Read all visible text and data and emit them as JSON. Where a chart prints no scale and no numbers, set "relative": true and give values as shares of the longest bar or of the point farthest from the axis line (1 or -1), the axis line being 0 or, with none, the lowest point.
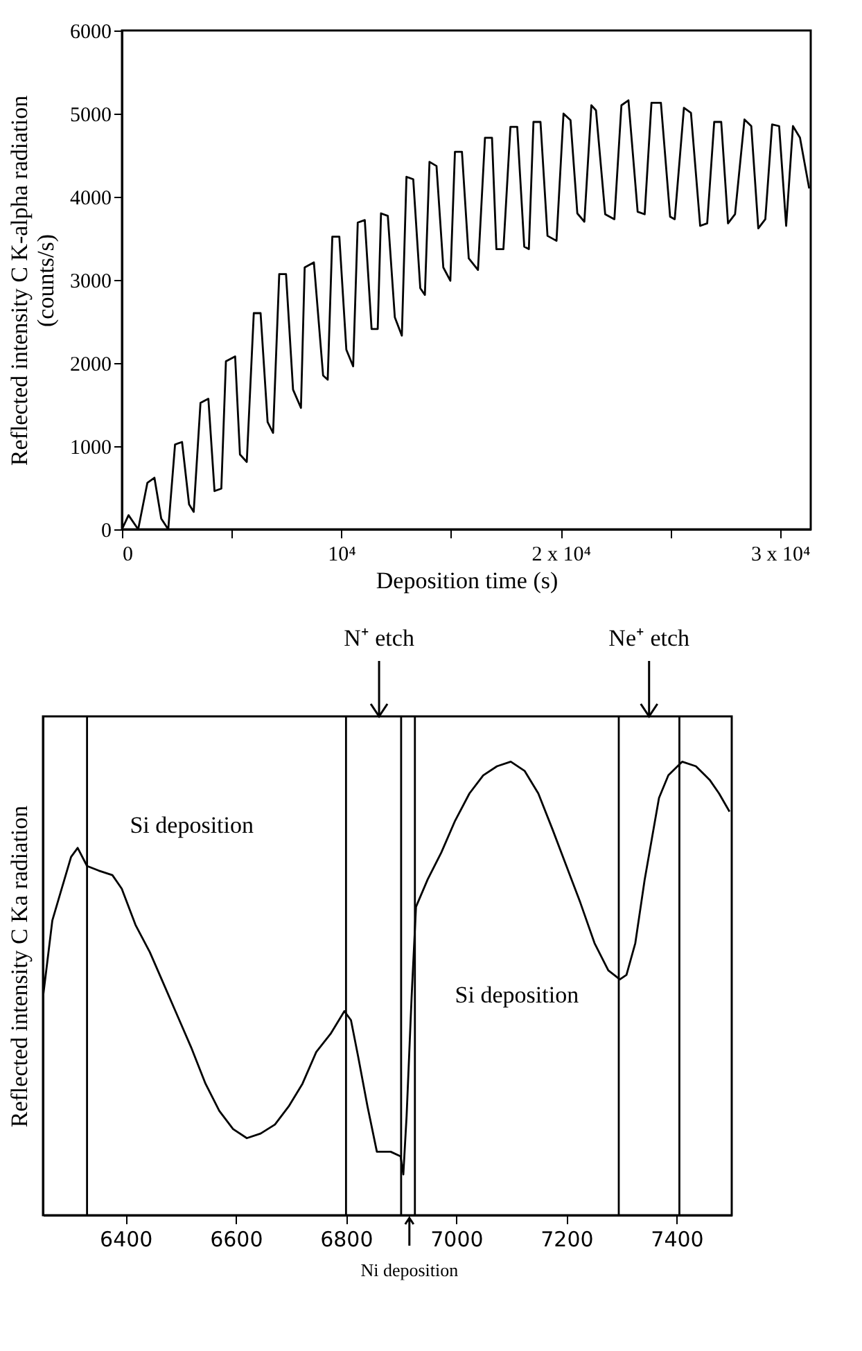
{
  "chart_data": [
    {
      "type": "line",
      "xlabel": "Deposition time (s)",
      "ylabel": "Reflected intensity C K-alpha radiation\n(counts/s)",
      "xlim": [
        0,
        31400
      ],
      "ylim": [
        0,
        6000
      ],
      "xticks": [
        0,
        {
          "value": 5000,
          "label": null
        },
        {
          "value": 10000,
          "label": "10⁴"
        },
        {
          "value": 15000,
          "label": null
        },
        {
          "value": 20000,
          "label": "2 x 10⁴"
        },
        {
          "value": 25000,
          "label": null
        },
        {
          "value": 30000,
          "label": "3 x 10⁴"
        }
      ],
      "yticks": [
        0,
        1000,
        2000,
        3000,
        4000,
        5000,
        6000
      ],
      "x": [
        0,
        300,
        740,
        1160,
        1480,
        1790,
        2110,
        2420,
        2740,
        3060,
        3270,
        3580,
        3940,
        4220,
        4530,
        4740,
        5160,
        5380,
        5690,
        6010,
        6320,
        6640,
        6890,
        7170,
        7480,
        7800,
        8160,
        8330,
        8750,
        9170,
        9380,
        9590,
        9910,
        10230,
        10540,
        10750,
        11070,
        11380,
        11660,
        11810,
        12120,
        12440,
        12760,
        12970,
        13280,
        13600,
        13810,
        14020,
        14340,
        14650,
        14970,
        15180,
        15500,
        15810,
        16230,
        16550,
        16870,
        17070,
        17390,
        17710,
        18020,
        18340,
        18550,
        18760,
        19080,
        19400,
        19810,
        20130,
        20450,
        20760,
        21080,
        21400,
        21610,
        22030,
        22450,
        22770,
        23090,
        23510,
        23830,
        24140,
        24570,
        24990,
        25200,
        25620,
        25940,
        26360,
        26680,
        27000,
        27320,
        27630,
        27950,
        28380,
        28690,
        29010,
        29330,
        29640,
        29960,
        30280,
        30590,
        30910,
        31330
      ],
      "series": [
        {
          "color": "#000000",
          "values": [
            0,
            170,
            0,
            560,
            620,
            130,
            0,
            1020,
            1050,
            300,
            210,
            1520,
            1570,
            460,
            490,
            2020,
            2080,
            900,
            810,
            2600,
            2600,
            1290,
            1160,
            3070,
            3070,
            1680,
            1460,
            3150,
            3210,
            1850,
            1800,
            3520,
            3520,
            2160,
            1960,
            3690,
            3720,
            2410,
            2410,
            3800,
            3770,
            2550,
            2330,
            4240,
            4210,
            2900,
            2820,
            4420,
            4370,
            3150,
            2990,
            4540,
            4540,
            3260,
            3120,
            4710,
            4710,
            3370,
            3370,
            4840,
            4840,
            3400,
            3370,
            4900,
            4900,
            3530,
            3470,
            5000,
            4920,
            3800,
            3700,
            5100,
            5040,
            3790,
            3730,
            5100,
            5160,
            3820,
            3790,
            5130,
            5130,
            3760,
            3730,
            5070,
            5010,
            3650,
            3680,
            4900,
            4900,
            3680,
            3790,
            4930,
            4850,
            3620,
            3730,
            4870,
            4850,
            3650,
            4850,
            4710,
            4100
          ]
        }
      ]
    },
    {
      "type": "line",
      "relative": true,
      "ylabel": "Reflected intensity C Ka radiation",
      "xlim": [
        6250,
        7500
      ],
      "xticks": [
        6400,
        6600,
        6800,
        7000,
        7200,
        7400
      ],
      "x": [
        6250,
        6267,
        6284,
        6301,
        6313,
        6330,
        6351,
        6376,
        6393,
        6418,
        6444,
        6469,
        6494,
        6519,
        6545,
        6570,
        6595,
        6620,
        6645,
        6671,
        6696,
        6721,
        6746,
        6772,
        6797,
        6809,
        6822,
        6839,
        6856,
        6881,
        6899,
        6904,
        6910,
        6919,
        6927,
        6948,
        6973,
        6998,
        7024,
        7049,
        7074,
        7099,
        7124,
        7149,
        7175,
        7200,
        7225,
        7251,
        7276,
        7297,
        7309,
        7325,
        7342,
        7355,
        7368,
        7385,
        7410,
        7435,
        7460,
        7477,
        7496
      ],
      "series": [
        {
          "color": "#000000",
          "values": [
            0.48,
            0.65,
            0.72,
            0.79,
            0.81,
            0.77,
            0.76,
            0.75,
            0.72,
            0.64,
            0.58,
            0.51,
            0.44,
            0.37,
            0.29,
            0.23,
            0.19,
            0.17,
            0.18,
            0.2,
            0.24,
            0.29,
            0.36,
            0.4,
            0.45,
            0.43,
            0.35,
            0.24,
            0.14,
            0.14,
            0.13,
            0.09,
            0.22,
            0.48,
            0.68,
            0.74,
            0.8,
            0.87,
            0.93,
            0.97,
            0.99,
            1.0,
            0.98,
            0.93,
            0.85,
            0.77,
            0.69,
            0.6,
            0.54,
            0.52,
            0.53,
            0.6,
            0.74,
            0.83,
            0.92,
            0.97,
            1.0,
            0.99,
            0.96,
            0.93,
            0.89
          ]
        }
      ],
      "ref_lines": [
        {
          "axis": "x",
          "value": 6330,
          "color": "#000000"
        },
        {
          "axis": "x",
          "value": 6800,
          "color": "#000000"
        },
        {
          "axis": "x",
          "value": 6900,
          "color": "#000000"
        },
        {
          "axis": "x",
          "value": 6925,
          "color": "#000000"
        },
        {
          "axis": "x",
          "value": 7295,
          "color": "#000000"
        },
        {
          "axis": "x",
          "value": 7405,
          "color": "#000000"
        }
      ],
      "annotations": [
        "Si deposition",
        "N⁺ etch",
        "Ni deposition",
        "Si deposition",
        "Ne⁺ etch"
      ]
    }
  ]
}
